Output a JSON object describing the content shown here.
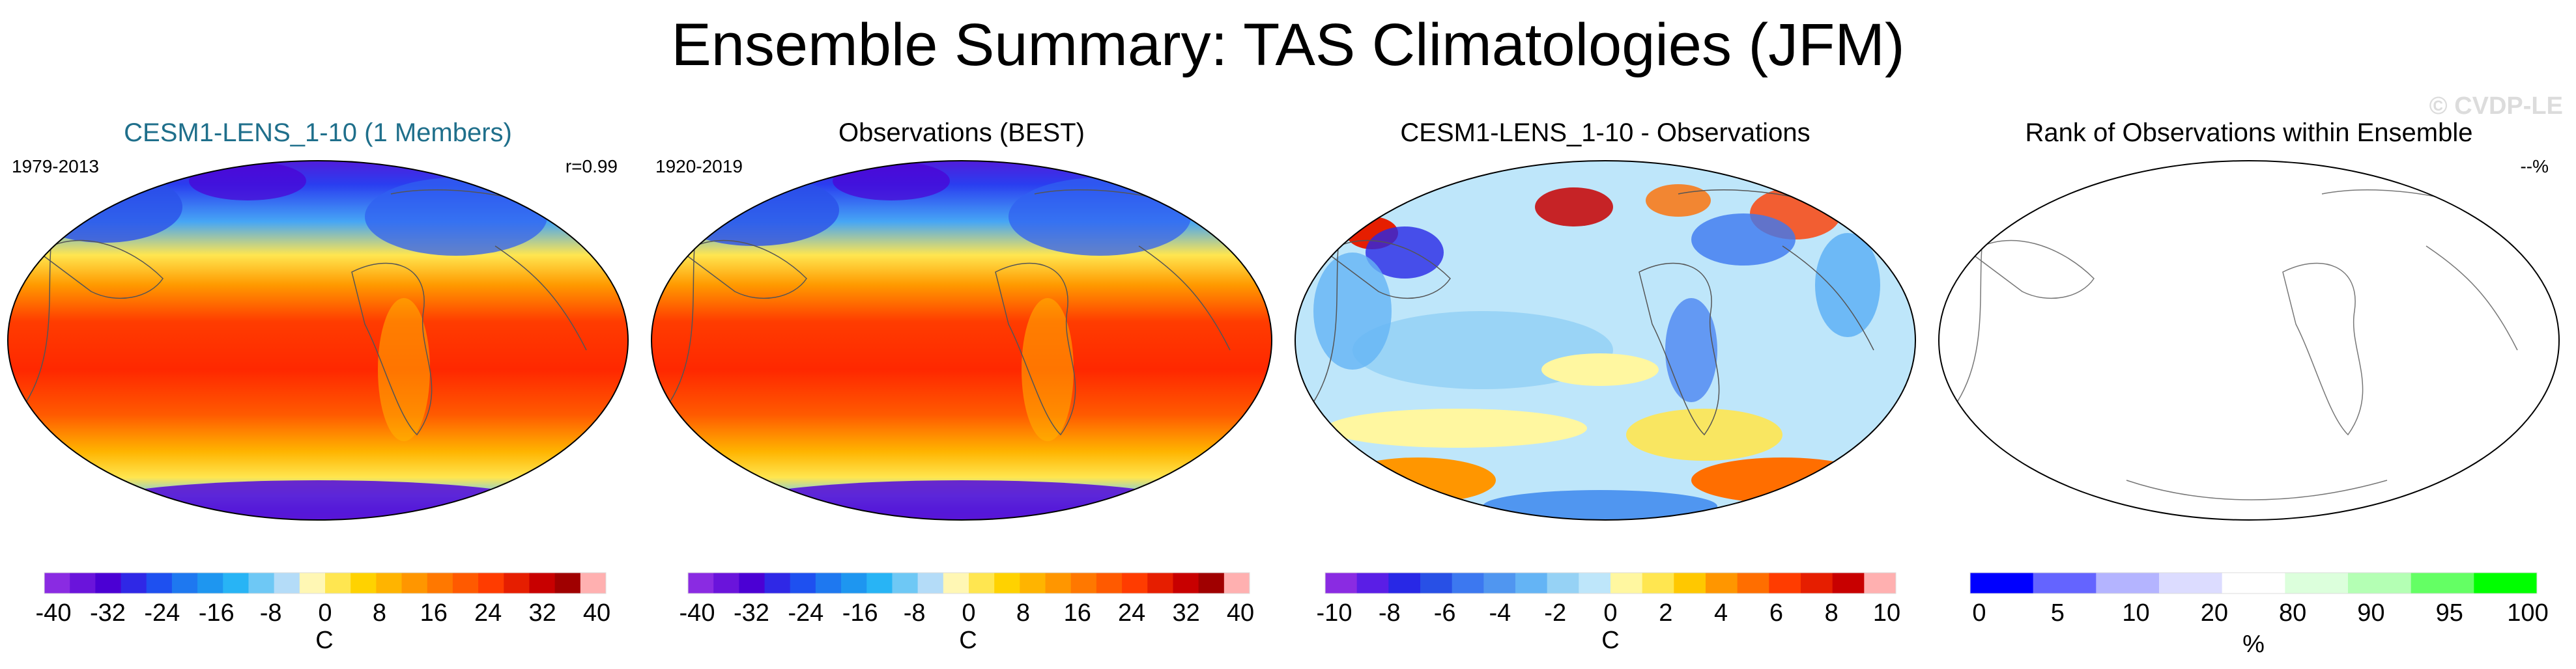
{
  "title": "Ensemble Summary: TAS Climatologies (JFM)",
  "watermark": "© CVDP-LE",
  "panels": [
    {
      "title": "CESM1-LENS_1-10 (1 Members)",
      "left_text": "1979-2013",
      "right_text": "r=0.99",
      "colorbar": {
        "ticks": [
          "-40",
          "-32",
          "-24",
          "-16",
          "-8",
          "0",
          "8",
          "16",
          "24",
          "32",
          "40"
        ],
        "unit": "C"
      }
    },
    {
      "title": "Observations (BEST)",
      "left_text": "1920-2019",
      "right_text": "",
      "colorbar": {
        "ticks": [
          "-40",
          "-32",
          "-24",
          "-16",
          "-8",
          "0",
          "8",
          "16",
          "24",
          "32",
          "40"
        ],
        "unit": "C"
      }
    },
    {
      "title": "CESM1-LENS_1-10 - Observations",
      "left_text": "",
      "right_text": "",
      "colorbar": {
        "ticks": [
          "-10",
          "-8",
          "-6",
          "-4",
          "-2",
          "0",
          "2",
          "4",
          "6",
          "8",
          "10"
        ],
        "unit": "C"
      }
    },
    {
      "title": "Rank of Observations within Ensemble",
      "left_text": "",
      "right_text": "--%",
      "colorbar": {
        "ticks": [
          "0",
          "5",
          "10",
          "20",
          "80",
          "90",
          "95",
          "100"
        ],
        "unit": "%"
      }
    }
  ],
  "chart_data": [
    {
      "type": "heatmap",
      "title": "CESM1-LENS_1-10 (1 Members)",
      "variable": "TAS climatology",
      "season": "JFM",
      "period": "1979-2013",
      "pattern_correlation": 0.99,
      "units": "C",
      "levels": [
        -40,
        -36,
        -32,
        -28,
        -24,
        -20,
        -16,
        -12,
        -8,
        -4,
        0,
        4,
        8,
        12,
        16,
        20,
        24,
        28,
        32,
        36,
        40
      ],
      "colorbar_ticks": [
        -40,
        -32,
        -24,
        -16,
        -8,
        0,
        8,
        16,
        24,
        32,
        40
      ]
    },
    {
      "type": "heatmap",
      "title": "Observations (BEST)",
      "variable": "TAS climatology",
      "season": "JFM",
      "period": "1920-2019",
      "units": "C",
      "levels": [
        -40,
        -36,
        -32,
        -28,
        -24,
        -20,
        -16,
        -12,
        -8,
        -4,
        0,
        4,
        8,
        12,
        16,
        20,
        24,
        28,
        32,
        36,
        40
      ],
      "colorbar_ticks": [
        -40,
        -32,
        -24,
        -16,
        -8,
        0,
        8,
        16,
        24,
        32,
        40
      ]
    },
    {
      "type": "heatmap",
      "title": "CESM1-LENS_1-10 - Observations",
      "variable": "TAS difference",
      "season": "JFM",
      "units": "C",
      "levels": [
        -10,
        -9,
        -8,
        -7,
        -6,
        -5,
        -4,
        -3,
        -2,
        -1,
        0,
        1,
        2,
        3,
        4,
        5,
        6,
        7,
        8,
        9,
        10
      ],
      "colorbar_ticks": [
        -10,
        -8,
        -6,
        -4,
        -2,
        0,
        2,
        4,
        6,
        8,
        10
      ]
    },
    {
      "type": "heatmap",
      "title": "Rank of Observations within Ensemble",
      "variable": "rank",
      "units": "%",
      "summary": "--%",
      "levels": [
        0,
        5,
        10,
        20,
        80,
        90,
        95,
        100
      ],
      "colorbar_ticks": [
        0,
        5,
        10,
        20,
        80,
        90,
        95,
        100
      ]
    }
  ],
  "palettes": {
    "temp": [
      "#8a2be2",
      "#6a14db",
      "#4b00d4",
      "#2f28e6",
      "#1e50f0",
      "#1e78f0",
      "#1e96f0",
      "#28b4f5",
      "#6ec8f5",
      "#b4dcf8",
      "#fff7b4",
      "#ffe650",
      "#ffd200",
      "#ffb400",
      "#ff9600",
      "#ff7800",
      "#ff5a00",
      "#ff3c00",
      "#e61e00",
      "#c80000",
      "#a00000",
      "#ffb0b0"
    ],
    "diff": [
      "#8a2be2",
      "#5a1ee6",
      "#2828e6",
      "#2850e6",
      "#3c78f0",
      "#5096f0",
      "#64b4f5",
      "#96d2f5",
      "#bee6fa",
      "#fff7a0",
      "#ffe650",
      "#ffc800",
      "#ff9600",
      "#ff6e00",
      "#ff3c00",
      "#e61e00",
      "#c80000",
      "#ffb0b0"
    ],
    "rank": [
      "#0000ff",
      "#6464ff",
      "#b4b4ff",
      "#dcdcff",
      "#ffffff",
      "#dcffdc",
      "#b4ffb4",
      "#64ff64",
      "#00ff00"
    ]
  }
}
